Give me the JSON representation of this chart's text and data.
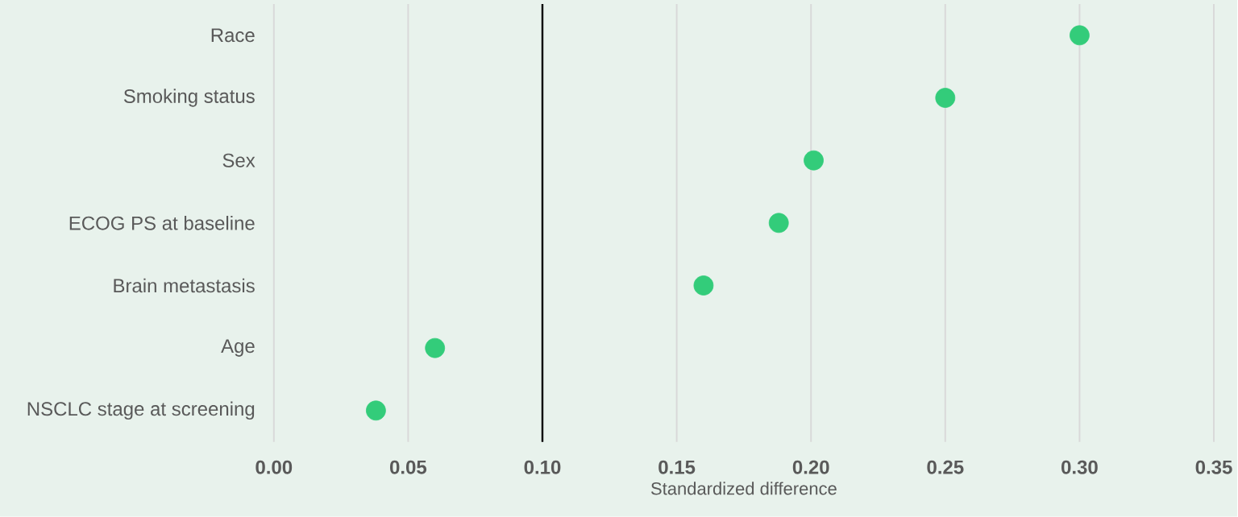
{
  "chart_data": {
    "type": "scatter",
    "orientation": "horizontal",
    "categories": [
      "Race",
      "Smoking status",
      "Sex",
      "ECOG PS at baseline",
      "Brain metastasis",
      "Age",
      "NSCLC stage at screening"
    ],
    "values": [
      0.3,
      0.25,
      0.201,
      0.188,
      0.16,
      0.06,
      0.038
    ],
    "color": "#33cc7a",
    "xlabel": "Standardized difference",
    "xlim": [
      0,
      0.35
    ],
    "xticks": [
      {
        "value": 0,
        "label": "0.00"
      },
      {
        "value": 0.05,
        "label": "0.05"
      },
      {
        "value": 0.1,
        "label": "0.10"
      },
      {
        "value": 0.15,
        "label": "0.15"
      },
      {
        "value": 0.2,
        "label": "0.20"
      },
      {
        "value": 0.25,
        "label": "0.25"
      },
      {
        "value": 0.3,
        "label": "0.30"
      },
      {
        "value": 0.35,
        "label": "0.35"
      }
    ],
    "ref_lines": [
      {
        "axis": "x",
        "value": 0.1,
        "color": "#000000"
      }
    ],
    "grid": "x"
  }
}
